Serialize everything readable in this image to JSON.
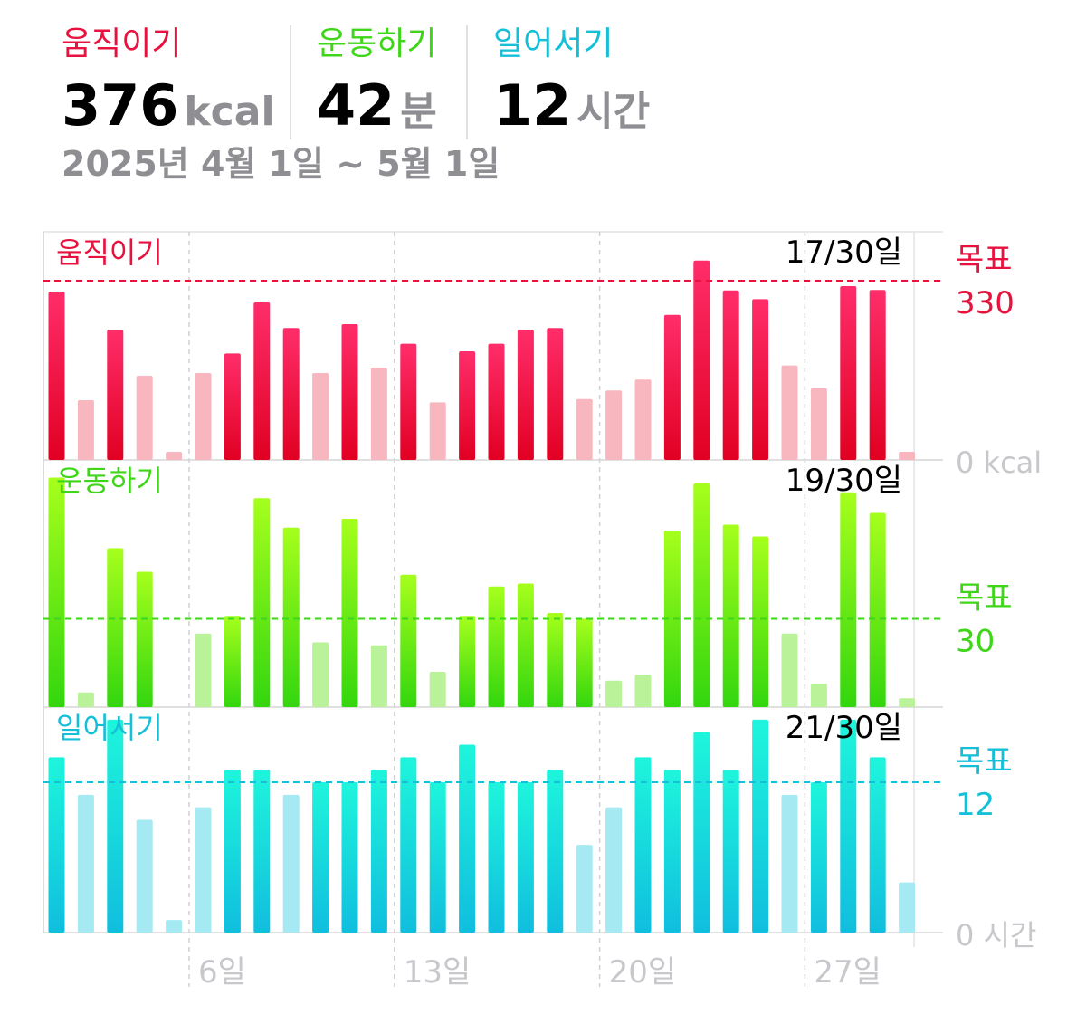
{
  "summary": {
    "move": {
      "label": "움직이기",
      "value": "376",
      "unit": "kcal"
    },
    "exercise": {
      "label": "운동하기",
      "value": "42",
      "unit": "분"
    },
    "stand": {
      "label": "일어서기",
      "value": "12",
      "unit": "시간"
    },
    "date_range": "2025년 4월 1일 ~ 5월 1일"
  },
  "colors": {
    "move": "#e8123f",
    "exercise": "#3fd61a",
    "stand": "#15bfd8",
    "axis_text": "#c7c7cc",
    "grid": "#d0d0d0"
  },
  "chart_data": {
    "type": "bar",
    "x_labels": [
      {
        "day": 6,
        "label": "6일"
      },
      {
        "day": 13,
        "label": "13일"
      },
      {
        "day": 20,
        "label": "20일"
      },
      {
        "day": 27,
        "label": "27일"
      }
    ],
    "days": [
      1,
      2,
      3,
      4,
      5,
      6,
      7,
      8,
      9,
      10,
      11,
      12,
      13,
      14,
      15,
      16,
      17,
      18,
      19,
      20,
      21,
      22,
      23,
      24,
      25,
      26,
      27,
      28,
      29,
      30,
      31
    ],
    "panels": [
      {
        "key": "move",
        "name": "움직이기",
        "count_label": "17/30일",
        "goal_label": "목표",
        "goal_value": 330,
        "goal_text": "330",
        "zero_label": "0 kcal",
        "ymax": 420,
        "values": [
          310,
          110,
          240,
          155,
          15,
          160,
          196,
          290,
          243,
          160,
          250,
          170,
          214,
          106,
          200,
          214,
          240,
          243,
          112,
          128,
          148,
          267,
          367,
          312,
          296,
          174,
          132,
          320,
          313,
          15,
          null
        ],
        "met_goal": [
          true,
          false,
          true,
          false,
          false,
          false,
          true,
          true,
          true,
          false,
          true,
          false,
          true,
          false,
          true,
          true,
          true,
          true,
          false,
          false,
          false,
          true,
          true,
          true,
          true,
          false,
          false,
          true,
          true,
          false,
          false
        ]
      },
      {
        "key": "exercise",
        "name": "운동하기",
        "count_label": "19/30일",
        "goal_label": "목표",
        "goal_value": 30,
        "goal_text": "30",
        "zero_label": "",
        "ymax": 84,
        "values": [
          78,
          5,
          54,
          46,
          0,
          25,
          31,
          71,
          61,
          22,
          64,
          21,
          45,
          12,
          31,
          41,
          42,
          32,
          30,
          9,
          11,
          60,
          76,
          62,
          58,
          25,
          8,
          73,
          66,
          3,
          null
        ],
        "met_goal": [
          true,
          false,
          true,
          true,
          false,
          false,
          true,
          true,
          true,
          false,
          true,
          false,
          true,
          false,
          true,
          true,
          true,
          true,
          true,
          false,
          false,
          true,
          true,
          true,
          true,
          false,
          false,
          true,
          true,
          false,
          false
        ]
      },
      {
        "key": "stand",
        "name": "일어서기",
        "count_label": "21/30일",
        "goal_label": "목표",
        "goal_value": 12,
        "goal_text": "12",
        "zero_label": "0 시간",
        "ymax": 18,
        "values": [
          14,
          11,
          17,
          9,
          1,
          10,
          13,
          13,
          11,
          12,
          12,
          13,
          14,
          12,
          15,
          12,
          12,
          13,
          7,
          10,
          14,
          13,
          16,
          13,
          17,
          11,
          12,
          17,
          14,
          4,
          null
        ],
        "met_goal": [
          true,
          false,
          true,
          false,
          false,
          false,
          true,
          true,
          false,
          true,
          true,
          true,
          true,
          true,
          true,
          true,
          true,
          true,
          false,
          false,
          true,
          true,
          true,
          true,
          true,
          false,
          true,
          true,
          true,
          false,
          false
        ]
      }
    ]
  }
}
